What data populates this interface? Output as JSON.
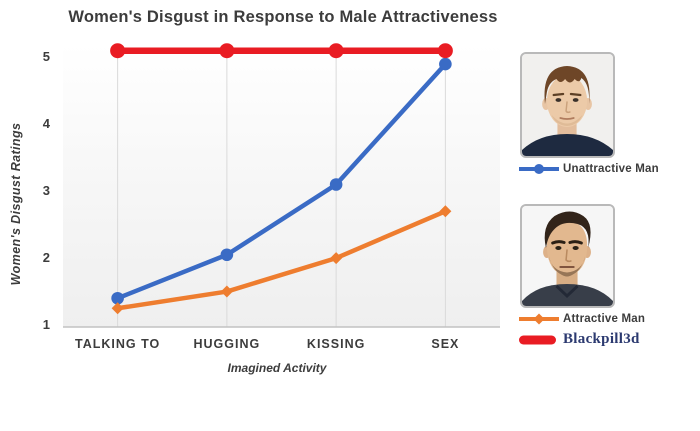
{
  "title": "Women's Disgust in Response to Male Attractiveness",
  "chart_data": {
    "type": "line",
    "title": "Women's Disgust in Response to Male Attractiveness",
    "xlabel": "Imagined Activity",
    "ylabel": "Women's Disgust Ratings",
    "categories": [
      "TALKING TO",
      "HUGGING",
      "KISSING",
      "SEX"
    ],
    "series": [
      {
        "name": "Unattractive Man",
        "color": "#3a6bc5",
        "marker": "circle",
        "values": [
          1.4,
          2.05,
          3.1,
          4.9
        ]
      },
      {
        "name": "Attractive Man",
        "color": "#ee7d2f",
        "marker": "diamond",
        "values": [
          1.25,
          1.5,
          2.0,
          2.7
        ]
      },
      {
        "name": "Blackpill3d",
        "color": "#e91c23",
        "marker": "circle",
        "values": [
          5.1,
          5.1,
          5.1,
          5.1
        ]
      }
    ],
    "ylim": [
      1,
      5.2
    ],
    "yticks": [
      1,
      2,
      3,
      4,
      5
    ],
    "grid": "vertical-only",
    "legend_position": "right",
    "axis_text_color": "#3c3c3c"
  },
  "legend": {
    "items": [
      {
        "label": "Unattractive Man",
        "color": "#3a6bc5",
        "marker": "line-circle"
      },
      {
        "label": "Attractive Man",
        "color": "#ee7d2f",
        "marker": "line-diamond"
      },
      {
        "label": "Blackpill3d",
        "color": "#e91c23",
        "marker": "pill",
        "label_color": "#2c3a70"
      }
    ]
  },
  "portraits": [
    {
      "name": "unattractive-man-photo"
    },
    {
      "name": "attractive-man-photo"
    }
  ]
}
